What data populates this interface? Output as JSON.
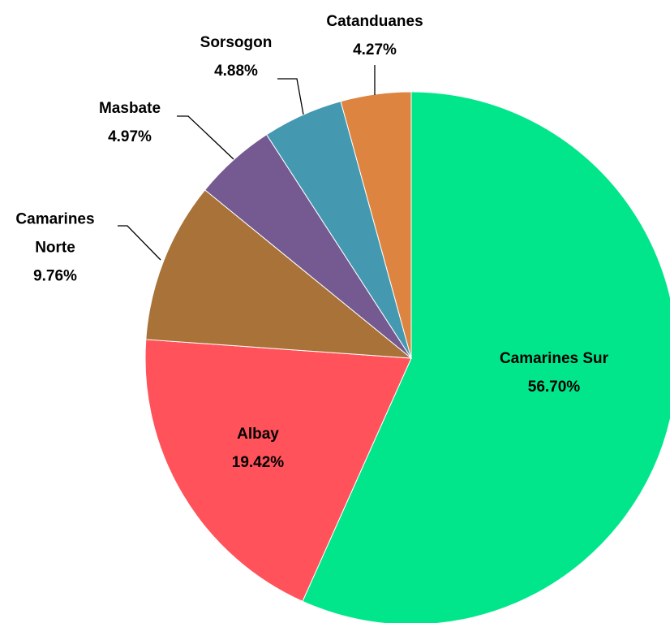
{
  "chart_data": {
    "type": "pie",
    "categories": [
      "Camarines Sur",
      "Albay",
      "Camarines Norte",
      "Masbate",
      "Sorsogon",
      "Catanduanes"
    ],
    "values": [
      56.7,
      19.42,
      9.76,
      4.97,
      4.88,
      4.27
    ],
    "value_labels": [
      "56.70%",
      "19.42%",
      "9.76%",
      "4.97%",
      "4.88%",
      "4.27%"
    ],
    "colors": [
      "#02e68b",
      "#ff525a",
      "#a87239",
      "#745a91",
      "#4499b0",
      "#dd8440"
    ]
  }
}
